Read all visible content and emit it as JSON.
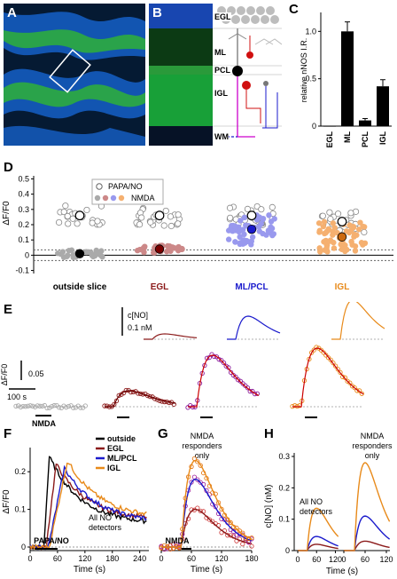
{
  "panels": {
    "A": "A",
    "B": "B",
    "C": "C",
    "D": "D",
    "E": "E",
    "F": "F",
    "G": "G",
    "H": "H"
  },
  "panel_b": {
    "layers": [
      "EGL",
      "ML",
      "PCL",
      "IGL",
      "WM"
    ]
  },
  "chart_data": [
    {
      "id": "C",
      "type": "bar",
      "categories": [
        "EGL",
        "ML",
        "PCL",
        "IGL"
      ],
      "values": [
        0.0,
        1.0,
        0.06,
        0.42
      ],
      "errors": [
        0.0,
        0.1,
        0.02,
        0.07
      ],
      "ylabel": "relative nNOS I.R.",
      "yticks": [
        "0",
        "0.5",
        "1.0"
      ],
      "ylim": [
        0,
        1.2
      ]
    },
    {
      "id": "D",
      "type": "scatter",
      "ylabel": "ΔF/F0",
      "yticks": [
        "-0.1",
        "0",
        "0.1",
        "0.2",
        "0.3",
        "0.4",
        "0.5"
      ],
      "ylim": [
        -0.12,
        0.52
      ],
      "categories": [
        "outside slice",
        "EGL",
        "ML/PCL",
        "IGL"
      ],
      "category_colors": [
        "#000000",
        "#8b1a1a",
        "#1a1acc",
        "#e88a1a"
      ],
      "legend": [
        "PAPA/NO",
        "NMDA"
      ],
      "papa_means": [
        0.26,
        0.26,
        0.26,
        0.22
      ],
      "nmda_means": [
        0.01,
        0.04,
        0.17,
        0.12
      ],
      "nmda_colors": [
        "#aaaaaa",
        "#cc8888",
        "#9999ee",
        "#f5b070"
      ],
      "nmda_mean_colors": [
        "#000000",
        "#7a0000",
        "#1a1acc",
        "#cc6a10"
      ]
    },
    {
      "id": "E",
      "type": "line",
      "ylabel": "ΔF/F0",
      "scale_y": "0.05",
      "scale_x": "100 s",
      "scale_c": "c[NO]",
      "scale_c_val": "0.1 nM",
      "stimulus": "NMDA"
    },
    {
      "id": "F",
      "type": "line",
      "ylabel": "ΔF/F0",
      "xlabel": "Time (s)",
      "xticks": [
        "0",
        "60",
        "120",
        "180",
        "240"
      ],
      "yticks": [
        "0",
        "0.1",
        "0.2"
      ],
      "legend": [
        "outside",
        "EGL",
        "ML/PCL",
        "IGL"
      ],
      "annotation": "All NO detectors",
      "stimulus": "PAPA/NO"
    },
    {
      "id": "G",
      "type": "line",
      "xlabel": "Time (s)",
      "xticks": [
        "0",
        "60",
        "120",
        "180"
      ],
      "annotation": "NMDA responders only",
      "stimulus": "NMDA"
    },
    {
      "id": "H",
      "type": "line",
      "ylabel": "c[NO] (nM)",
      "xlabel": "Time (s)",
      "xticks": [
        "0",
        "60",
        "120"
      ],
      "yticks": [
        "0",
        "0.1",
        "0.2",
        "0.3"
      ],
      "annotation_left": "All NO detectors",
      "annotation_right": "NMDA responders only",
      "peaks_left": [
        0.02,
        0.045,
        0.135
      ],
      "peaks_right": [
        0.03,
        0.11,
        0.28
      ]
    }
  ]
}
